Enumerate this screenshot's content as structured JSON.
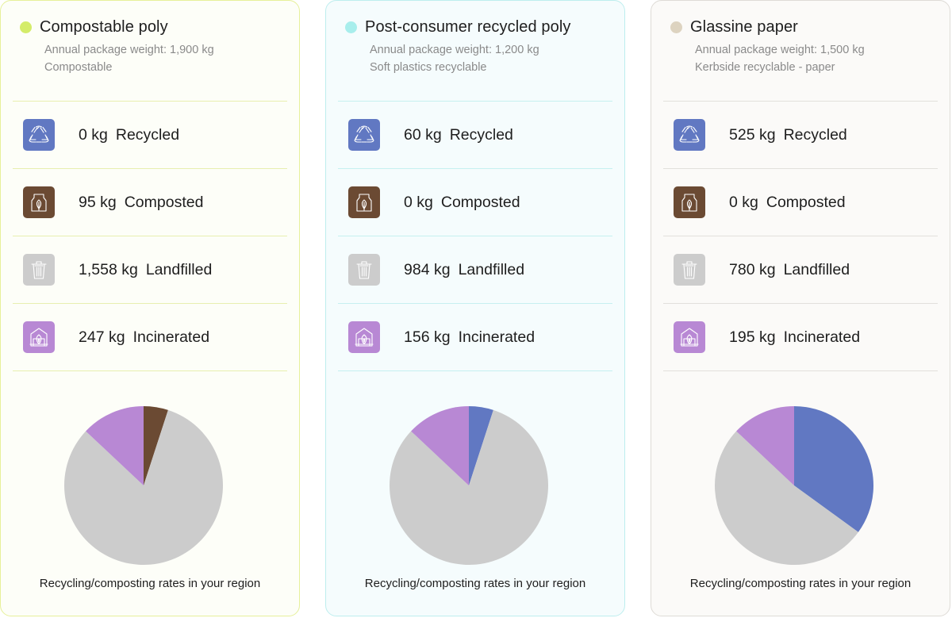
{
  "colors": {
    "recycled": "#6178c2",
    "composted": "#6b4a33",
    "landfilled": "#cccccc",
    "incinerated": "#b888d4"
  },
  "stat_icons": [
    "recycle-icon",
    "compost-bag-icon",
    "trash-bin-icon",
    "incinerator-icon"
  ],
  "cards": [
    {
      "title": "Compostable poly",
      "weight": "Annual package weight: 1,900 kg",
      "disposal": "Compostable",
      "accent": "#d4ec6a",
      "border": "#e6f09a",
      "bg": "#fdfef8",
      "divider": "#e8efb0",
      "stats": [
        {
          "amount": "0 kg",
          "label": "Recycled"
        },
        {
          "amount": "95 kg",
          "label": "Composted"
        },
        {
          "amount": "1,558 kg",
          "label": "Landfilled"
        },
        {
          "amount": "247 kg",
          "label": "Incinerated"
        }
      ],
      "pie_values": [
        0,
        95,
        1558,
        247
      ],
      "caption": "Recycling/composting rates in your region"
    },
    {
      "title": "Post-consumer recycled poly",
      "weight": "Annual package weight: 1,200 kg",
      "disposal": "Soft plastics recyclable",
      "accent": "#a8eeec",
      "border": "#bdeeee",
      "bg": "#f5fcfd",
      "divider": "#c6f0f0",
      "stats": [
        {
          "amount": "60 kg",
          "label": "Recycled"
        },
        {
          "amount": "0 kg",
          "label": "Composted"
        },
        {
          "amount": "984 kg",
          "label": "Landfilled"
        },
        {
          "amount": "156 kg",
          "label": "Incinerated"
        }
      ],
      "pie_values": [
        60,
        0,
        984,
        156
      ],
      "caption": "Recycling/composting rates in your region"
    },
    {
      "title": "Glassine paper",
      "weight": "Annual package weight: 1,500 kg",
      "disposal": "Kerbside recyclable - paper",
      "accent": "#ddd3c0",
      "border": "#dedbd6",
      "bg": "#fbfaf8",
      "divider": "#e2e0dc",
      "stats": [
        {
          "amount": "525 kg",
          "label": "Recycled"
        },
        {
          "amount": "0 kg",
          "label": "Composted"
        },
        {
          "amount": "780 kg",
          "label": "Landfilled"
        },
        {
          "amount": "195 kg",
          "label": "Incinerated"
        }
      ],
      "pie_values": [
        525,
        0,
        780,
        195
      ],
      "caption": "Recycling/composting rates in your region"
    }
  ]
}
